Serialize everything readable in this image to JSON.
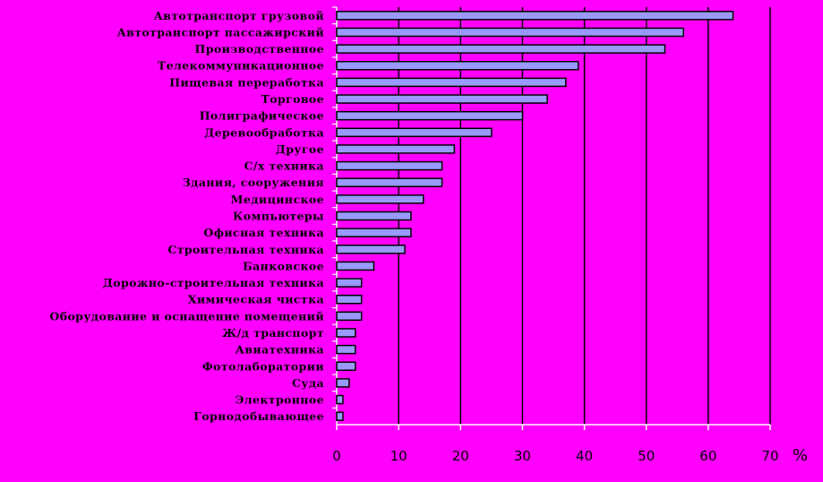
{
  "chart_data": {
    "type": "bar",
    "orientation": "horizontal",
    "categories": [
      "Автотранспорт грузовой",
      "Автотранспорт пассажирский",
      "Производственное",
      "Телекоммуникационное",
      "Пищевая переработка",
      "Торговое",
      "Полиграфическое",
      "Деревообработка",
      "Другое",
      "С/х техника",
      "Здания, сооружения",
      "Медицинское",
      "Компьютеры",
      "Офисная техника",
      "Строительная техника",
      "Банковское",
      "Дорожно-строительная техника",
      "Химическая чистка",
      "Оборудование и оснащение помещений",
      "Ж/д транспорт",
      "Авиатехника",
      "Фотолаборатории",
      "Суда",
      "Электронное",
      "Горнодобывающее"
    ],
    "values": [
      64,
      56,
      53,
      39,
      37,
      34,
      30,
      25,
      19,
      17,
      17,
      14,
      12,
      12,
      11,
      6,
      4,
      4,
      4,
      3,
      3,
      3,
      2,
      1,
      1
    ],
    "xlim": [
      0,
      70
    ],
    "xticks": [
      "0",
      "10",
      "20",
      "30",
      "40",
      "50",
      "60",
      "70"
    ],
    "unit_label": "%",
    "grid": true,
    "colors": {
      "background": "#ff00ff",
      "bar_fill": "#9999ff",
      "bar_stroke": "#000000",
      "gridline": "#000000",
      "tick_mark": "#ffffff"
    }
  }
}
